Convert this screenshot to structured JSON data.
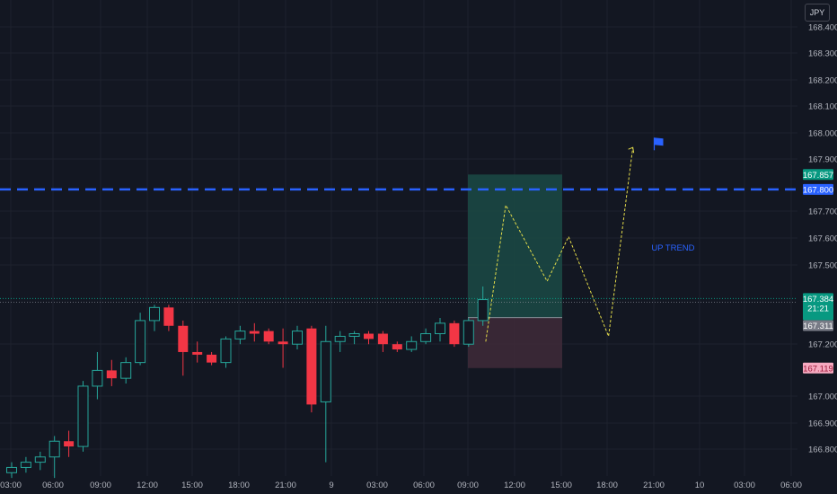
{
  "currency": "JPY",
  "chart_data": {
    "type": "candlestick",
    "y_ticks": [
      "168.400",
      "168.300",
      "168.200",
      "168.100",
      "168.000",
      "167.900",
      "167.700",
      "167.600",
      "167.500",
      "167.200",
      "167.000",
      "166.900",
      "166.800"
    ],
    "x_ticks": [
      "03:00",
      "06:00",
      "09:00",
      "12:00",
      "15:00",
      "18:00",
      "21:00",
      "9",
      "03:00",
      "06:00",
      "09:00",
      "12:00",
      "15:00",
      "18:00",
      "21:00",
      "10",
      "03:00",
      "06:00"
    ],
    "ylim": [
      166.72,
      168.44
    ],
    "candles": [
      {
        "o": 166.72,
        "h": 166.76,
        "l": 166.7,
        "c": 166.74
      },
      {
        "o": 166.74,
        "h": 166.78,
        "l": 166.72,
        "c": 166.76
      },
      {
        "o": 166.76,
        "h": 166.8,
        "l": 166.73,
        "c": 166.78
      },
      {
        "o": 166.78,
        "h": 166.86,
        "l": 166.7,
        "c": 166.84
      },
      {
        "o": 166.84,
        "h": 166.88,
        "l": 166.78,
        "c": 166.82
      },
      {
        "o": 166.82,
        "h": 167.07,
        "l": 166.8,
        "c": 167.05
      },
      {
        "o": 167.05,
        "h": 167.18,
        "l": 167.0,
        "c": 167.11
      },
      {
        "o": 167.11,
        "h": 167.15,
        "l": 167.05,
        "c": 167.08
      },
      {
        "o": 167.08,
        "h": 167.16,
        "l": 167.06,
        "c": 167.14
      },
      {
        "o": 167.14,
        "h": 167.33,
        "l": 167.13,
        "c": 167.3
      },
      {
        "o": 167.3,
        "h": 167.36,
        "l": 167.26,
        "c": 167.35
      },
      {
        "o": 167.35,
        "h": 167.36,
        "l": 167.26,
        "c": 167.28
      },
      {
        "o": 167.28,
        "h": 167.3,
        "l": 167.09,
        "c": 167.18
      },
      {
        "o": 167.18,
        "h": 167.22,
        "l": 167.14,
        "c": 167.17
      },
      {
        "o": 167.17,
        "h": 167.18,
        "l": 167.13,
        "c": 167.14
      },
      {
        "o": 167.14,
        "h": 167.24,
        "l": 167.12,
        "c": 167.23
      },
      {
        "o": 167.23,
        "h": 167.28,
        "l": 167.21,
        "c": 167.26
      },
      {
        "o": 167.26,
        "h": 167.29,
        "l": 167.22,
        "c": 167.25
      },
      {
        "o": 167.26,
        "h": 167.27,
        "l": 167.21,
        "c": 167.22
      },
      {
        "o": 167.22,
        "h": 167.27,
        "l": 167.12,
        "c": 167.21
      },
      {
        "o": 167.21,
        "h": 167.28,
        "l": 167.19,
        "c": 167.26
      },
      {
        "o": 167.27,
        "h": 167.28,
        "l": 166.95,
        "c": 166.98
      },
      {
        "o": 166.99,
        "h": 167.28,
        "l": 166.76,
        "c": 167.22
      },
      {
        "o": 167.22,
        "h": 167.26,
        "l": 167.18,
        "c": 167.24
      },
      {
        "o": 167.24,
        "h": 167.26,
        "l": 167.21,
        "c": 167.25
      },
      {
        "o": 167.25,
        "h": 167.26,
        "l": 167.21,
        "c": 167.23
      },
      {
        "o": 167.25,
        "h": 167.26,
        "l": 167.18,
        "c": 167.21
      },
      {
        "o": 167.21,
        "h": 167.22,
        "l": 167.18,
        "c": 167.19
      },
      {
        "o": 167.19,
        "h": 167.24,
        "l": 167.18,
        "c": 167.22
      },
      {
        "o": 167.22,
        "h": 167.27,
        "l": 167.21,
        "c": 167.25
      },
      {
        "o": 167.25,
        "h": 167.31,
        "l": 167.22,
        "c": 167.29
      },
      {
        "o": 167.29,
        "h": 167.3,
        "l": 167.2,
        "c": 167.21
      },
      {
        "o": 167.21,
        "h": 167.31,
        "l": 167.2,
        "c": 167.3
      },
      {
        "o": 167.3,
        "h": 167.43,
        "l": 167.28,
        "c": 167.38
      }
    ],
    "resistance_level": {
      "value": 167.8,
      "label": "167.800"
    },
    "current_price": {
      "value": 167.384,
      "label": "167.384",
      "countdown": "21:21"
    },
    "long_position": {
      "target": 167.857,
      "target_label": "167.857",
      "entry": 167.311,
      "entry_label": "167.311",
      "stop": 167.119,
      "stop_label": "167.119"
    },
    "projection_path": [
      {
        "bar": 33.2,
        "price": 167.22
      },
      {
        "bar": 34.6,
        "price": 167.74
      },
      {
        "bar": 37.5,
        "price": 167.45
      },
      {
        "bar": 39.0,
        "price": 167.62
      },
      {
        "bar": 41.8,
        "price": 167.24
      },
      {
        "bar": 43.5,
        "price": 167.96
      }
    ],
    "flag": {
      "bar": 45.0,
      "price": 167.97
    },
    "annotation": {
      "text": "UP TREND",
      "bar": 44.8,
      "price": 167.58
    }
  },
  "colors": {
    "background": "#131722",
    "grid": "#1e222d",
    "up_border": "#26a69a",
    "down_body": "#f23645",
    "level_line": "#2962ff",
    "target_zone": "#1b4a45",
    "stop_zone": "#3f2a38",
    "projection": "#e4dc4a",
    "axis_text": "#b2b5be",
    "current_badge": "#089981",
    "entry_badge": "#787b86",
    "stop_badge": "#f7a9c0"
  }
}
